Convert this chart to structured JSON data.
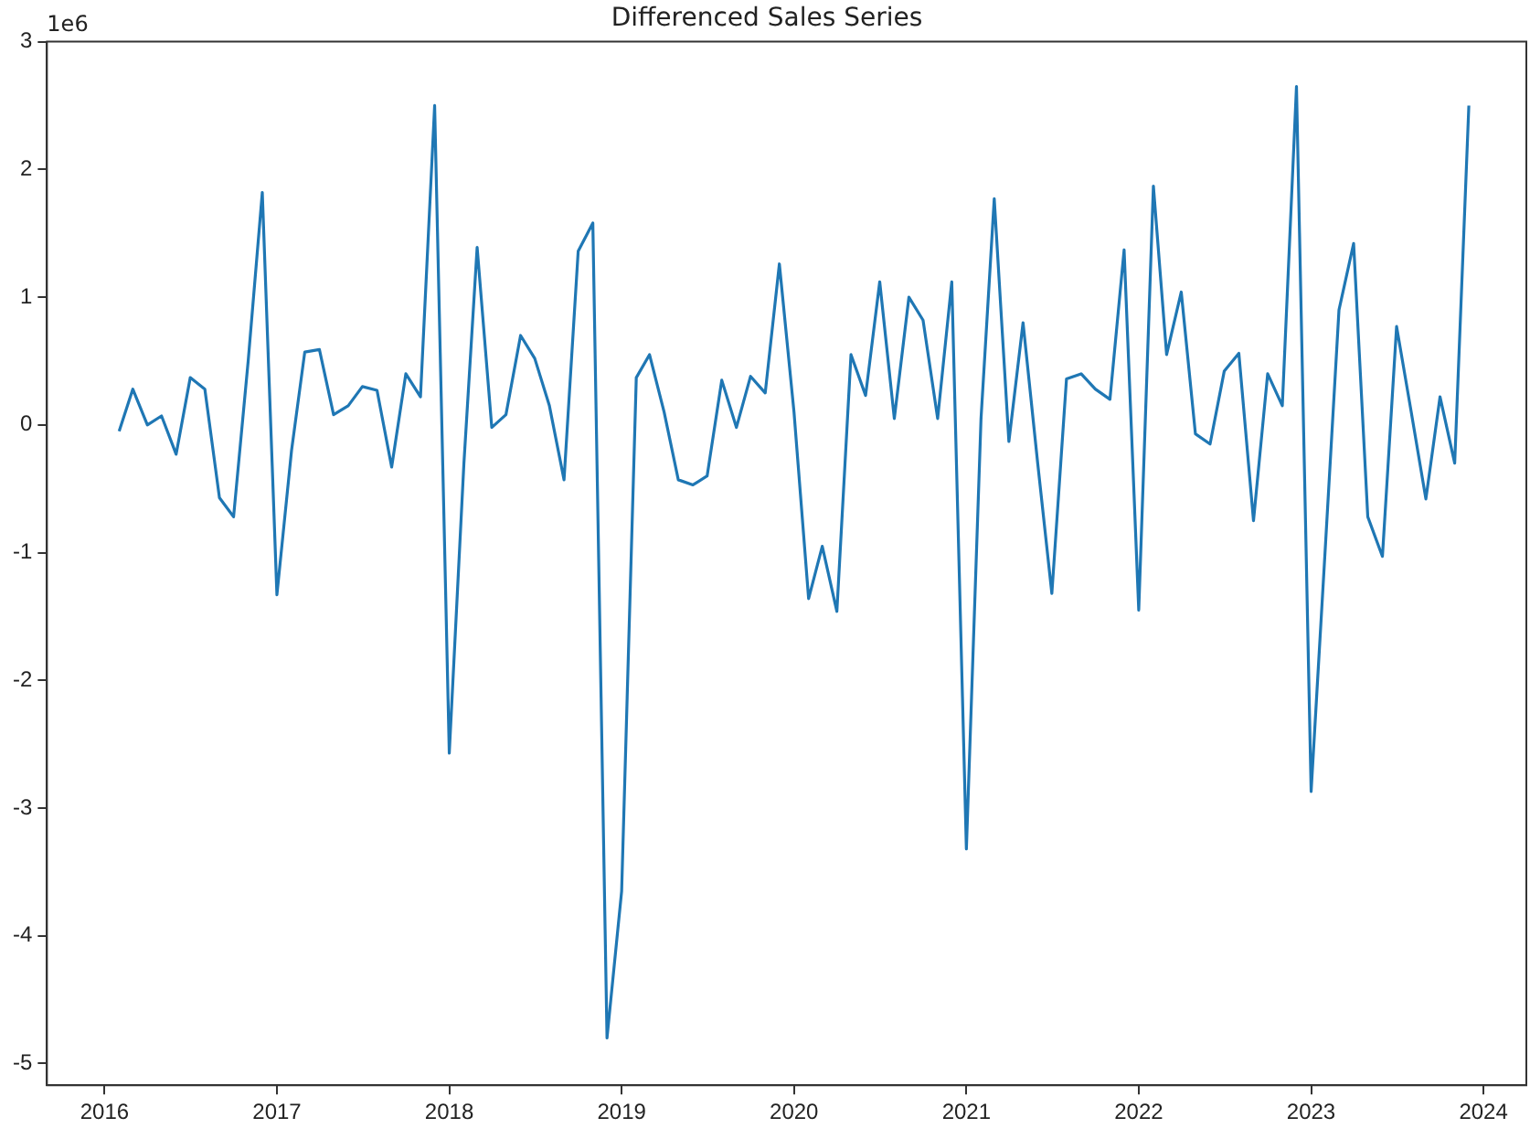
{
  "chart_data": {
    "type": "line",
    "title": "Differenced Sales Series",
    "annotations": [
      "1e6"
    ],
    "x": [
      "2016-02",
      "2016-03",
      "2016-04",
      "2016-05",
      "2016-06",
      "2016-07",
      "2016-08",
      "2016-09",
      "2016-10",
      "2016-11",
      "2016-12",
      "2017-01",
      "2017-02",
      "2017-03",
      "2017-04",
      "2017-05",
      "2017-06",
      "2017-07",
      "2017-08",
      "2017-09",
      "2017-10",
      "2017-11",
      "2017-12",
      "2018-01",
      "2018-02",
      "2018-03",
      "2018-04",
      "2018-05",
      "2018-06",
      "2018-07",
      "2018-08",
      "2018-09",
      "2018-10",
      "2018-11",
      "2018-12",
      "2019-01",
      "2019-02",
      "2019-03",
      "2019-04",
      "2019-05",
      "2019-06",
      "2019-07",
      "2019-08",
      "2019-09",
      "2019-10",
      "2019-11",
      "2019-12",
      "2020-01",
      "2020-02",
      "2020-03",
      "2020-04",
      "2020-05",
      "2020-06",
      "2020-07",
      "2020-08",
      "2020-09",
      "2020-10",
      "2020-11",
      "2020-12",
      "2021-01",
      "2021-02",
      "2021-03",
      "2021-04",
      "2021-05",
      "2021-06",
      "2021-07",
      "2021-08",
      "2021-09",
      "2021-10",
      "2021-11",
      "2021-12",
      "2022-01",
      "2022-02",
      "2022-03",
      "2022-04",
      "2022-05",
      "2022-06",
      "2022-07",
      "2022-08",
      "2022-09",
      "2022-10",
      "2022-11",
      "2022-12",
      "2023-01",
      "2023-02",
      "2023-03",
      "2023-04",
      "2023-05",
      "2023-06",
      "2023-07",
      "2023-08",
      "2023-09",
      "2023-10",
      "2023-11",
      "2023-12"
    ],
    "series": [
      {
        "color": "#1f77b4",
        "values": [
          -0.05,
          0.28,
          0.0,
          0.07,
          -0.23,
          0.37,
          0.28,
          -0.57,
          -0.72,
          0.5,
          1.82,
          -1.33,
          -0.2,
          0.57,
          0.59,
          0.08,
          0.15,
          0.3,
          0.27,
          -0.33,
          0.4,
          0.22,
          2.5,
          -2.57,
          -0.3,
          1.39,
          -0.02,
          0.08,
          0.7,
          0.52,
          0.15,
          -0.43,
          1.36,
          1.58,
          -4.8,
          -3.65,
          0.37,
          0.55,
          0.1,
          -0.43,
          -0.47,
          -0.4,
          0.35,
          -0.02,
          0.38,
          0.25,
          1.26,
          0.1,
          -1.36,
          -0.95,
          -1.46,
          0.55,
          0.23,
          1.12,
          0.05,
          1.0,
          0.82,
          0.05,
          1.12,
          -3.32,
          0.05,
          1.77,
          -0.13,
          0.8,
          -0.3,
          -1.32,
          0.36,
          0.4,
          0.28,
          0.2,
          1.37,
          -1.45,
          1.87,
          0.55,
          1.04,
          -0.07,
          -0.15,
          0.42,
          0.56,
          -0.75,
          0.4,
          0.15,
          2.65,
          -2.87,
          -0.9,
          0.9,
          1.42,
          -0.72,
          -1.03,
          0.77,
          0.1,
          -0.58,
          0.22,
          -0.3,
          2.5
        ]
      }
    ],
    "xlim": [
      "2015-09",
      "2024-04"
    ],
    "xticks": [
      "2016",
      "2017",
      "2018",
      "2019",
      "2020",
      "2021",
      "2022",
      "2023",
      "2024"
    ],
    "ylim": [
      -5.17,
      3.0
    ],
    "yticks": [
      -5,
      -4,
      -3,
      -2,
      -1,
      0,
      1,
      2,
      3
    ],
    "grid": false,
    "legend": false,
    "marker": "none",
    "line_style": "solid"
  }
}
